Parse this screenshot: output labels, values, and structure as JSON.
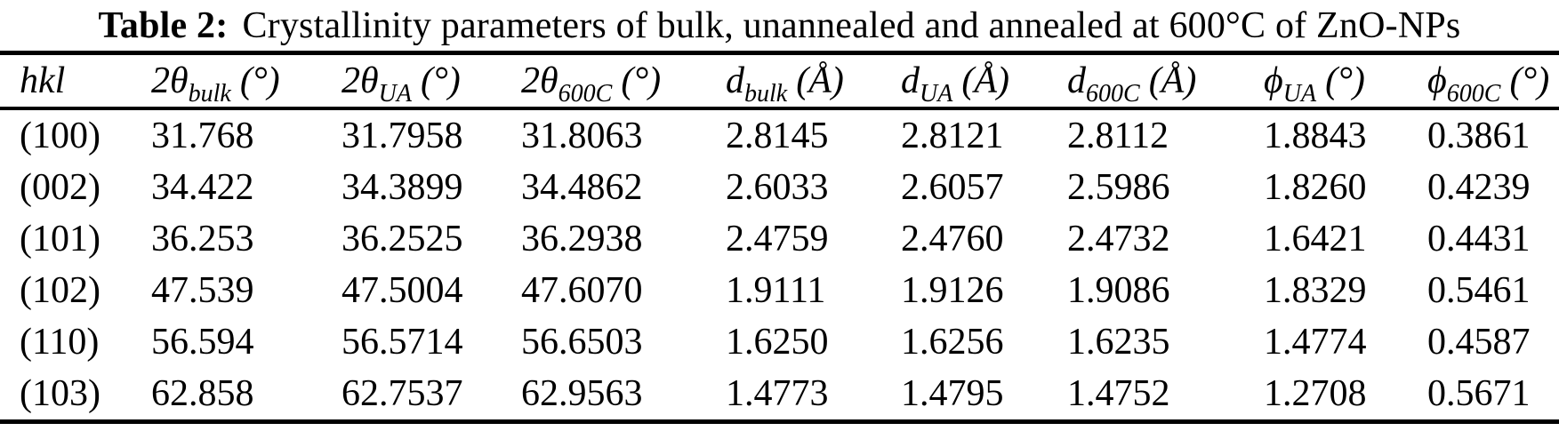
{
  "title": {
    "label": "Table 2:",
    "text": "Crystallinity parameters of bulk, unannealed and annealed at 600°C of ZnO-NPs"
  },
  "columns": [
    {
      "key": "hkl",
      "base": "hkl",
      "sub": "",
      "unit": ""
    },
    {
      "key": "2theta-bulk",
      "base": "2θ",
      "sub": "bulk",
      "unit": "(°)"
    },
    {
      "key": "2theta-ua",
      "base": "2θ",
      "sub": "UA",
      "unit": "(°)"
    },
    {
      "key": "2theta-600c",
      "base": "2θ",
      "sub": "600C",
      "unit": "(°)"
    },
    {
      "key": "d-bulk",
      "base": "d",
      "sub": "bulk",
      "unit": "(Å)"
    },
    {
      "key": "d-ua",
      "base": "d",
      "sub": "UA",
      "unit": "(Å)"
    },
    {
      "key": "d-600c",
      "base": "d",
      "sub": "600C",
      "unit": "(Å)"
    },
    {
      "key": "phi-ua",
      "base": "ϕ",
      "sub": "UA",
      "unit": "(°)"
    },
    {
      "key": "phi-600c",
      "base": "ϕ",
      "sub": "600C",
      "unit": "(°)"
    }
  ],
  "rows": [
    {
      "hkl": "(100)",
      "values": [
        "31.768",
        "31.7958",
        "31.8063",
        "2.8145",
        "2.8121",
        "2.8112",
        "1.8843",
        "0.3861"
      ]
    },
    {
      "hkl": "(002)",
      "values": [
        "34.422",
        "34.3899",
        "34.4862",
        "2.6033",
        "2.6057",
        "2.5986",
        "1.8260",
        "0.4239"
      ]
    },
    {
      "hkl": "(101)",
      "values": [
        "36.253",
        "36.2525",
        "36.2938",
        "2.4759",
        "2.4760",
        "2.4732",
        "1.6421",
        "0.4431"
      ]
    },
    {
      "hkl": "(102)",
      "values": [
        "47.539",
        "47.5004",
        "47.6070",
        "1.9111",
        "1.9126",
        "1.9086",
        "1.8329",
        "0.5461"
      ]
    },
    {
      "hkl": "(110)",
      "values": [
        "56.594",
        "56.5714",
        "56.6503",
        "1.6250",
        "1.6256",
        "1.6235",
        "1.4774",
        "0.4587"
      ]
    },
    {
      "hkl": "(103)",
      "values": [
        "62.858",
        "62.7537",
        "62.9563",
        "1.4773",
        "1.4795",
        "1.4752",
        "1.2708",
        "0.5671"
      ]
    }
  ]
}
